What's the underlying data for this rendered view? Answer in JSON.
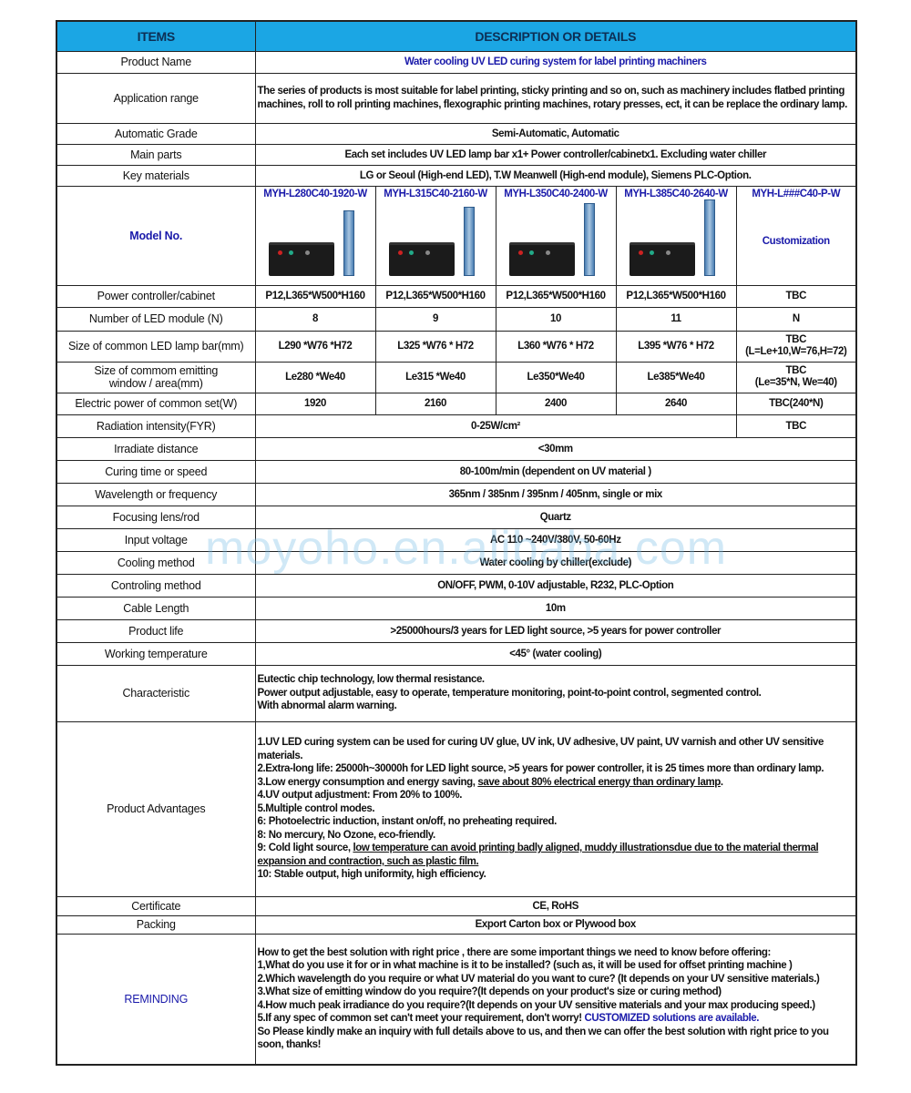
{
  "header": {
    "items": "ITEMS",
    "details": "DESCRIPTION OR DETAILS"
  },
  "watermark": "moyoho.en.alibaba.com",
  "colors": {
    "header_bg": "#1ba6e4",
    "accent_blue": "#1a1aaa"
  },
  "spec_rows_top": [
    {
      "label": "Product Name",
      "value": "Water cooling UV LED curing system for label printing machiners",
      "style": "blue"
    },
    {
      "label": "Application range",
      "value": "The series of products is most suitable for label printing, sticky printing and so on, such as machinery includes flatbed printing machines, roll to roll printing machines, flexographic printing machines, rotary presses, ect,  it can be replace the ordinary lamp.",
      "style": "left"
    },
    {
      "label": "Automatic Grade",
      "value": "Semi-Automatic, Automatic"
    },
    {
      "label": "Main parts",
      "value": "Each set includes UV LED lamp bar x1+ Power controller/cabinetx1. Excluding water chiller"
    },
    {
      "label": "Key materials",
      "value": "LG or Seoul (High-end LED), T.W Meanwell (High-end module), Siemens PLC-Option."
    }
  ],
  "models": {
    "label": "Model No.",
    "names": [
      "MYH-L280C40-1920-W",
      "MYH-L315C40-2160-W",
      "MYH-L350C40-2400-W",
      "MYH-L385C40-2640-W",
      "MYH-L###C40-P-W"
    ],
    "custom_note": "Customization"
  },
  "model_rows": [
    {
      "label": "Power controller/cabinet",
      "cells": [
        "P12,L365*W500*H160",
        "P12,L365*W500*H160",
        "P12,L365*W500*H160",
        "P12,L365*W500*H160",
        "TBC"
      ]
    },
    {
      "label": "Number of LED module (N)",
      "cells": [
        "8",
        "9",
        "10",
        "11",
        "N"
      ]
    },
    {
      "label": "Size of common LED lamp bar(mm)",
      "cells": [
        "L290 *W76 *H72",
        "L325 *W76 * H72",
        "L360 *W76 * H72",
        "L395 *W76 * H72",
        "TBC\n(L=Le+10,W=76,H=72)"
      ]
    },
    {
      "label": "Size of commom emitting\nwindow / area(mm)",
      "cells": [
        "Le280 *We40",
        "Le315 *We40",
        "Le350*We40",
        "Le385*We40",
        "TBC\n(Le=35*N, We=40)"
      ]
    },
    {
      "label": "Electric power of common set(W)",
      "cells": [
        "1920",
        "2160",
        "2400",
        "2640",
        "TBC(240*N)"
      ]
    }
  ],
  "radiation": {
    "label": "Radiation intensity(FYR)",
    "value": "0-25W/cm²",
    "custom": "TBC"
  },
  "spec_rows_mid": [
    {
      "label": "Irradiate distance",
      "value": "<30mm"
    },
    {
      "label": "Curing time or speed",
      "value": "80-100m/min (dependent on UV material )"
    },
    {
      "label": "Wavelength or frequency",
      "value": "365nm / 385nm / 395nm / 405nm, single or mix"
    },
    {
      "label": "Focusing lens/rod",
      "value": "Quartz"
    },
    {
      "label": "Input voltage",
      "value": "AC 110 ~240V/380V,  50-60Hz"
    },
    {
      "label": "Cooling method",
      "value": "Water cooling by chiller(exclude)"
    },
    {
      "label": "Controling method",
      "value": "ON/OFF, PWM, 0-10V adjustable, R232, PLC-Option"
    },
    {
      "label": "Cable Length",
      "value": "10m"
    },
    {
      "label": "Product life",
      "value": ">25000hours/3 years for LED light source, >5 years for power controller"
    },
    {
      "label": "Working temperature",
      "value": "<45° (water cooling)"
    }
  ],
  "characteristic": {
    "label": "Characteristic",
    "lines": [
      [
        {
          "text": "Eutectic  chip technology, low thermal resistance."
        }
      ],
      [
        {
          "text": "Power output adjustable, easy to operate, temperature monitoring, point-to-point control, segmented control."
        }
      ],
      [
        {
          "text": "With abnormal alarm warning."
        }
      ]
    ]
  },
  "advantages": {
    "label": "Product Advantages",
    "lines": [
      [
        {
          "text": "1.UV LED curing system can be used for curing UV glue, UV ink, UV adhesive, UV paint, UV varnish and other UV sensitive materials."
        }
      ],
      [
        {
          "text": "2.Extra-long life: 25000h~30000h for LED light source, >5 years for power controller, it is 25 times more than ordinary lamp."
        }
      ],
      [
        {
          "text": "3.Low energy consumption and energy saving, "
        },
        {
          "text": "save about 80%  electrical energy than ordinary lamp",
          "u": true
        },
        {
          "text": "."
        }
      ],
      [
        {
          "text": "4.UV output adjustment: From 20% to 100%."
        }
      ],
      [
        {
          "text": "5.Multiple control modes."
        }
      ],
      [
        {
          "text": "6: Photoelectric induction, instant on/off, no preheating required."
        }
      ],
      [
        {
          "text": "8: No mercury, No Ozone, eco-friendly."
        }
      ],
      [
        {
          "text": "9: Cold light source, "
        },
        {
          "text": "low temperature can avoid printing badly aligned, muddy illustrationsdue due to the material thermal expansion and contraction, such as plastic film.",
          "u": true
        }
      ],
      [
        {
          "text": "10: Stable output, high uniformity, high efficiency."
        }
      ]
    ]
  },
  "spec_rows_bottom": [
    {
      "label": "Certificate",
      "value": "CE, RoHS"
    },
    {
      "label": "Packing",
      "value": "Export Carton box or Plywood box"
    }
  ],
  "reminding": {
    "label": "REMINDING",
    "lines": [
      [
        {
          "text": "How to get the best solution with right price , there are some important things we need to know before offering:"
        }
      ],
      [
        {
          "text": "1,What do you use it for or in what machine is it to be installed? (such as, it will be used for offset printing machine )"
        }
      ],
      [
        {
          "text": "2.Which wavelength do you require or what UV material do you want to cure? (It depends on your  UV sensitive materials.)"
        }
      ],
      [
        {
          "text": "3.What size of emitting window do you require?(It depends on your product's size or curing method)"
        }
      ],
      [
        {
          "text": "4.How much peak irradiance do you require?(It depends on your UV sensitive materials and your max producing speed.)"
        }
      ],
      [
        {
          "text": "5.If any spec of common set can't meet your requirement, don't worry! "
        },
        {
          "text": "CUSTOMIZED solutions are available.",
          "blue": true
        }
      ],
      [
        {
          "text": "So Please kindly make an inquiry with full details above to us, and then we can offer the best solution with right price to you soon, thanks!"
        }
      ]
    ]
  }
}
